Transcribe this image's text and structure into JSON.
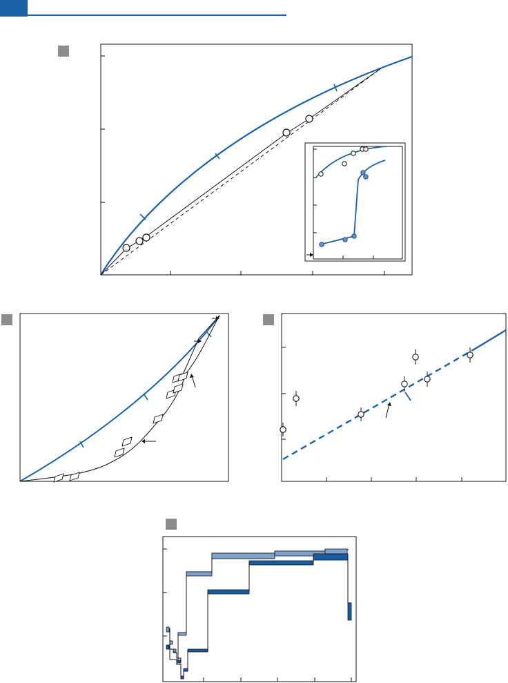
{
  "colors": {
    "accent": "#1a62a8",
    "light_fill": "#7fa3cf",
    "dark_fill": "#1a5ca3",
    "ink": "#111111",
    "panel_label": "#8c8c8c"
  },
  "chart_data": [
    {
      "panel": "A",
      "type": "line",
      "xlim": [
        0,
        1
      ],
      "ylim": [
        0,
        1
      ],
      "series": [
        {
          "style": "blue-curve",
          "x": [
            0,
            0.03,
            0.1,
            0.2,
            0.3,
            0.4,
            0.5,
            0.6,
            0.7,
            0.8,
            0.9,
            1.0
          ],
          "y": [
            0,
            0.07,
            0.18,
            0.31,
            0.42,
            0.52,
            0.61,
            0.7,
            0.78,
            0.85,
            0.92,
            0.98
          ]
        },
        {
          "style": "dashed",
          "x": [
            0,
            0.9
          ],
          "y": [
            0,
            0.94
          ]
        },
        {
          "style": "solid-black",
          "x": [
            0,
            0.08,
            0.14,
            0.66,
            0.9
          ],
          "y": [
            0,
            0.08,
            0.14,
            0.6,
            0.93
          ]
        }
      ],
      "points": {
        "x": [
          0.08,
          0.124,
          0.148,
          0.598,
          0.667
        ],
        "y": [
          0.11,
          0.155,
          0.169,
          0.648,
          0.721
        ]
      }
    },
    {
      "panel": "A-inset",
      "type": "scatter",
      "series": [
        {
          "style": "open",
          "x": [
            0.05,
            0.35,
            0.5,
            0.6,
            0.65
          ],
          "y": [
            0.78,
            0.86,
            0.95,
            1.0,
            1.0
          ]
        },
        {
          "style": "filled",
          "x": [
            0.05,
            0.3,
            0.45,
            0.6,
            0.63
          ],
          "y": [
            0.1,
            0.14,
            0.16,
            0.74,
            0.7
          ]
        }
      ]
    },
    {
      "panel": "B",
      "type": "line",
      "xlim": [
        0,
        1
      ],
      "ylim": [
        0,
        1
      ],
      "series": [
        {
          "style": "blue-curve",
          "x": [
            0,
            0.3,
            0.6,
            0.9,
            1.0
          ],
          "y": [
            0,
            0.2,
            0.45,
            0.74,
            0.84
          ]
        },
        {
          "style": "black-curve",
          "x": [
            0,
            0.25,
            0.5,
            0.7,
            0.85,
            1.0
          ],
          "y": [
            0.03,
            0.05,
            0.2,
            0.49,
            0.72,
            1.0
          ]
        }
      ],
      "points": {
        "x": [
          0.18,
          0.26,
          0.48,
          0.51,
          0.66,
          0.73,
          0.75,
          0.76,
          0.77
        ],
        "y": [
          0.03,
          0.04,
          0.17,
          0.24,
          0.36,
          0.5,
          0.55,
          0.58,
          0.58
        ]
      }
    },
    {
      "panel": "C",
      "type": "scatter",
      "ylim": [
        0,
        1
      ],
      "fit": {
        "style": "dashed-then-solid",
        "x": [
          0,
          0.9
        ],
        "y": [
          0.13,
          0.83
        ]
      },
      "points": {
        "x": [
          0.01,
          0.08,
          0.38,
          0.58,
          0.63,
          0.7,
          0.89
        ],
        "y": [
          0.29,
          0.48,
          0.39,
          0.57,
          0.72,
          0.59,
          0.73
        ]
      }
    },
    {
      "panel": "D",
      "type": "step",
      "series": [
        {
          "name": "light",
          "x": [
            0,
            0.02,
            0.08,
            0.12,
            0.25,
            0.55,
            0.85,
            0.99
          ],
          "y": [
            0.3,
            0.2,
            0.27,
            0.58,
            0.86,
            0.87,
            0.88,
            0.88
          ]
        },
        {
          "name": "dark",
          "x": [
            0,
            0.05,
            0.09,
            0.12,
            0.23,
            0.45,
            0.8,
            0.99
          ],
          "y": [
            0.2,
            0.08,
            0.04,
            0.13,
            0.48,
            0.77,
            0.83,
            0.4
          ]
        }
      ]
    }
  ]
}
